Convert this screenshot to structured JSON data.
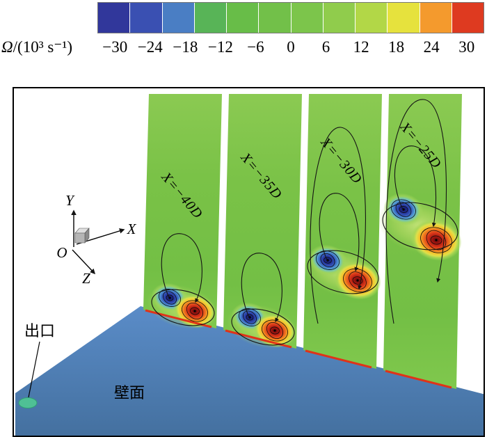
{
  "figure": {
    "colorbar": {
      "symbol": "Ω",
      "unit": "/(10³ s⁻¹)",
      "ticks": [
        "−30",
        "−24",
        "−18",
        "−12",
        "−6",
        "0",
        "6",
        "12",
        "18",
        "24",
        "30"
      ],
      "segments": [
        "#31379b",
        "#3a50b2",
        "#4a7ec4",
        "#58b457",
        "#68bd48",
        "#72c049",
        "#7cc54b",
        "#90cc4c",
        "#b2d747",
        "#e6e23d",
        "#f49a2d",
        "#de3a20"
      ]
    },
    "scene": {
      "planes": [
        {
          "label": "X=−40D"
        },
        {
          "label": "X=−35D"
        },
        {
          "label": "X=−30D"
        },
        {
          "label": "X=−25D"
        }
      ],
      "axes": {
        "origin": "O",
        "x": "X",
        "y": "Y",
        "z": "Z"
      },
      "annotations": {
        "outlet": "出口",
        "wall": "壁面"
      },
      "colors": {
        "floor": "#4d80c0",
        "plane_base": "#77c047",
        "negative_core": "#10155a",
        "positive_core": "#620b0b",
        "outlet_marker": "#4fc095",
        "wall_strip": "#e03318"
      }
    }
  }
}
